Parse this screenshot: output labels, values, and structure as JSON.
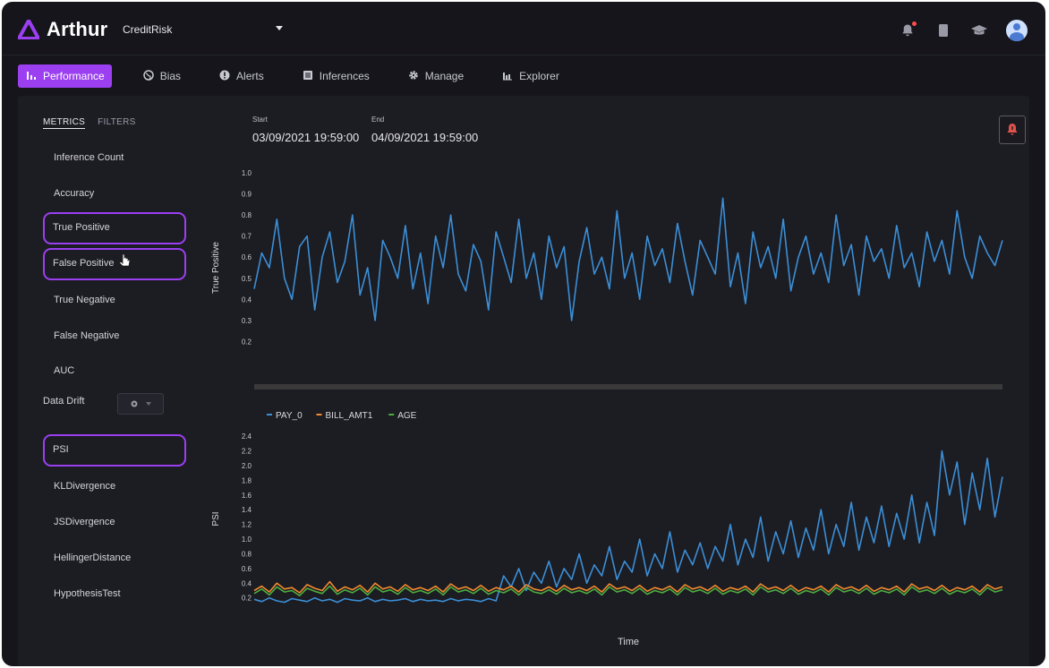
{
  "app": {
    "brand": "Arthur",
    "model_name": "CreditRisk"
  },
  "header": {
    "icons": [
      "bell-icon",
      "document-icon",
      "graduation-cap-icon",
      "user-avatar"
    ]
  },
  "nav": {
    "items": [
      {
        "label": "Performance",
        "icon": "bar-chart-icon",
        "active": true
      },
      {
        "label": "Bias",
        "icon": "globe-icon",
        "active": false
      },
      {
        "label": "Alerts",
        "icon": "alert-icon",
        "active": false
      },
      {
        "label": "Inferences",
        "icon": "list-icon",
        "active": false
      },
      {
        "label": "Manage",
        "icon": "gear-icon",
        "active": false
      },
      {
        "label": "Explorer",
        "icon": "explorer-icon",
        "active": false
      }
    ]
  },
  "sidebar": {
    "tabs": [
      {
        "label": "METRICS",
        "active": true
      },
      {
        "label": "FILTERS",
        "active": false
      }
    ],
    "metrics": [
      {
        "label": "Inference Count",
        "highlighted": false
      },
      {
        "label": "Accuracy",
        "highlighted": false
      },
      {
        "label": "True Positive",
        "highlighted": true
      },
      {
        "label": "False Positive",
        "highlighted": true
      },
      {
        "label": "True Negative",
        "highlighted": false
      },
      {
        "label": "False Negative",
        "highlighted": false
      },
      {
        "label": "AUC",
        "highlighted": false
      }
    ],
    "data_drift_label": "Data Drift",
    "drift_metrics": [
      {
        "label": "PSI",
        "highlighted": true
      },
      {
        "label": "KLDivergence",
        "highlighted": false
      },
      {
        "label": "JSDivergence",
        "highlighted": false
      },
      {
        "label": "HellingerDistance",
        "highlighted": false
      },
      {
        "label": "HypothesisTest",
        "highlighted": false
      }
    ]
  },
  "range": {
    "start_label": "Start",
    "start_value": "03/09/2021 19:59:00",
    "end_label": "End",
    "end_value": "04/09/2021 19:59:00"
  },
  "colors": {
    "accent": "#9b3ff0",
    "pay_0": "#3b8fd6",
    "bill_amt1": "#f28a2e",
    "age": "#4cae3f"
  },
  "chart_data": [
    {
      "type": "line",
      "ylabel": "True Positive",
      "xlabel": "",
      "yticks": [
        0.2,
        0.3,
        0.4,
        0.5,
        0.6,
        0.7,
        0.8,
        0.9,
        1.0
      ],
      "ylim": [
        0.1,
        1.0
      ],
      "series": [
        {
          "values": [
            0.45,
            0.62,
            0.55,
            0.78,
            0.5,
            0.4,
            0.65,
            0.7,
            0.35,
            0.6,
            0.72,
            0.48,
            0.58,
            0.8,
            0.42,
            0.55,
            0.3,
            0.68,
            0.6,
            0.5,
            0.75,
            0.45,
            0.62,
            0.38,
            0.7,
            0.55,
            0.8,
            0.52,
            0.44,
            0.66,
            0.58,
            0.35,
            0.72,
            0.6,
            0.48,
            0.78,
            0.5,
            0.62,
            0.4,
            0.7,
            0.55,
            0.65,
            0.3,
            0.58,
            0.74,
            0.52,
            0.6,
            0.45,
            0.82,
            0.5,
            0.62,
            0.4,
            0.7,
            0.56,
            0.64,
            0.48,
            0.76,
            0.58,
            0.42,
            0.68,
            0.6,
            0.52,
            0.88,
            0.46,
            0.62,
            0.38,
            0.72,
            0.55,
            0.65,
            0.5,
            0.78,
            0.44,
            0.6,
            0.7,
            0.52,
            0.62,
            0.48,
            0.8,
            0.56,
            0.66,
            0.42,
            0.7,
            0.58,
            0.64,
            0.5,
            0.75,
            0.55,
            0.62,
            0.46,
            0.72,
            0.58,
            0.68,
            0.52,
            0.82,
            0.6,
            0.5,
            0.7,
            0.62,
            0.56,
            0.68
          ]
        }
      ]
    },
    {
      "type": "line",
      "ylabel": "PSI",
      "xlabel": "Time",
      "yticks": [
        0.2,
        0.4,
        0.6,
        0.8,
        1.0,
        1.2,
        1.4,
        1.6,
        1.8,
        2.0,
        2.2,
        2.4
      ],
      "ylim": [
        0.05,
        2.5
      ],
      "legend": "top-left",
      "series": [
        {
          "name": "PAY_0",
          "values": [
            0.18,
            0.15,
            0.2,
            0.16,
            0.14,
            0.19,
            0.17,
            0.15,
            0.2,
            0.16,
            0.18,
            0.14,
            0.19,
            0.17,
            0.16,
            0.2,
            0.15,
            0.18,
            0.16,
            0.17,
            0.19,
            0.15,
            0.18,
            0.16,
            0.17,
            0.15,
            0.19,
            0.16,
            0.18,
            0.17,
            0.15,
            0.19,
            0.16,
            0.5,
            0.35,
            0.6,
            0.3,
            0.55,
            0.4,
            0.7,
            0.35,
            0.6,
            0.45,
            0.8,
            0.4,
            0.65,
            0.5,
            0.9,
            0.45,
            0.7,
            0.55,
            1.0,
            0.5,
            0.8,
            0.6,
            1.1,
            0.55,
            0.85,
            0.65,
            0.95,
            0.6,
            0.9,
            0.7,
            1.2,
            0.65,
            1.0,
            0.75,
            1.3,
            0.7,
            1.1,
            0.8,
            1.25,
            0.75,
            1.15,
            0.85,
            1.4,
            0.8,
            1.2,
            0.9,
            1.5,
            0.85,
            1.3,
            0.95,
            1.45,
            0.9,
            1.35,
            1.0,
            1.6,
            0.95,
            1.5,
            1.05,
            2.2,
            1.6,
            2.05,
            1.2,
            1.9,
            1.4,
            2.1,
            1.3,
            1.85
          ]
        },
        {
          "name": "BILL_AMT1",
          "values": [
            0.3,
            0.36,
            0.28,
            0.4,
            0.32,
            0.34,
            0.27,
            0.38,
            0.33,
            0.3,
            0.42,
            0.29,
            0.35,
            0.31,
            0.37,
            0.28,
            0.4,
            0.32,
            0.35,
            0.29,
            0.38,
            0.31,
            0.34,
            0.3,
            0.36,
            0.28,
            0.39,
            0.32,
            0.35,
            0.3,
            0.37,
            0.29,
            0.34,
            0.31,
            0.36,
            0.28,
            0.38,
            0.32,
            0.3,
            0.35,
            0.29,
            0.37,
            0.31,
            0.34,
            0.3,
            0.36,
            0.28,
            0.39,
            0.32,
            0.35,
            0.3,
            0.37,
            0.29,
            0.34,
            0.31,
            0.36,
            0.28,
            0.38,
            0.32,
            0.35,
            0.3,
            0.37,
            0.29,
            0.34,
            0.31,
            0.36,
            0.28,
            0.39,
            0.32,
            0.35,
            0.3,
            0.37,
            0.29,
            0.34,
            0.31,
            0.36,
            0.28,
            0.38,
            0.32,
            0.35,
            0.3,
            0.37,
            0.29,
            0.34,
            0.31,
            0.36,
            0.28,
            0.39,
            0.32,
            0.35,
            0.3,
            0.37,
            0.29,
            0.34,
            0.31,
            0.36,
            0.28,
            0.38,
            0.32,
            0.35
          ]
        },
        {
          "name": "AGE",
          "values": [
            0.26,
            0.32,
            0.24,
            0.35,
            0.28,
            0.3,
            0.23,
            0.33,
            0.29,
            0.26,
            0.36,
            0.25,
            0.31,
            0.27,
            0.33,
            0.24,
            0.35,
            0.28,
            0.31,
            0.25,
            0.34,
            0.27,
            0.3,
            0.26,
            0.32,
            0.24,
            0.35,
            0.28,
            0.31,
            0.26,
            0.33,
            0.25,
            0.3,
            0.27,
            0.32,
            0.24,
            0.34,
            0.28,
            0.26,
            0.31,
            0.25,
            0.33,
            0.27,
            0.3,
            0.26,
            0.32,
            0.24,
            0.35,
            0.28,
            0.31,
            0.26,
            0.33,
            0.25,
            0.3,
            0.27,
            0.32,
            0.24,
            0.34,
            0.28,
            0.31,
            0.26,
            0.33,
            0.25,
            0.3,
            0.27,
            0.32,
            0.24,
            0.35,
            0.28,
            0.31,
            0.26,
            0.33,
            0.25,
            0.3,
            0.27,
            0.32,
            0.24,
            0.34,
            0.28,
            0.31,
            0.26,
            0.33,
            0.25,
            0.3,
            0.27,
            0.32,
            0.24,
            0.35,
            0.28,
            0.31,
            0.26,
            0.33,
            0.25,
            0.3,
            0.27,
            0.32,
            0.24,
            0.34,
            0.28,
            0.31
          ]
        }
      ]
    }
  ]
}
